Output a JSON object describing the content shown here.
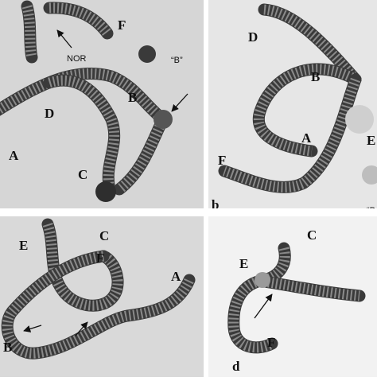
{
  "panels": [
    {
      "labels": [
        "F",
        "NOR",
        "“B”",
        "B",
        "D",
        "A",
        "C"
      ]
    },
    {
      "labels": [
        "D",
        "B",
        "A",
        "E",
        "F",
        "b",
        "“B"
      ]
    },
    {
      "labels": [
        "E",
        "C",
        "F",
        "A",
        "B"
      ]
    },
    {
      "labels": [
        "C",
        "E",
        "F",
        "d"
      ]
    }
  ]
}
